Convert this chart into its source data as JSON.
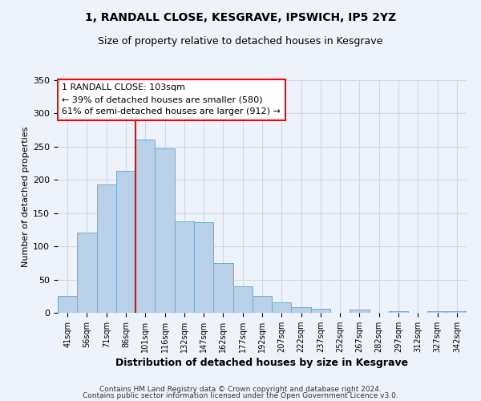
{
  "title": "1, RANDALL CLOSE, KESGRAVE, IPSWICH, IP5 2YZ",
  "subtitle": "Size of property relative to detached houses in Kesgrave",
  "xlabel": "Distribution of detached houses by size in Kesgrave",
  "ylabel": "Number of detached properties",
  "categories": [
    "41sqm",
    "56sqm",
    "71sqm",
    "86sqm",
    "101sqm",
    "116sqm",
    "132sqm",
    "147sqm",
    "162sqm",
    "177sqm",
    "192sqm",
    "207sqm",
    "222sqm",
    "237sqm",
    "252sqm",
    "267sqm",
    "282sqm",
    "297sqm",
    "312sqm",
    "327sqm",
    "342sqm"
  ],
  "values": [
    25,
    121,
    193,
    214,
    261,
    247,
    137,
    136,
    75,
    40,
    25,
    16,
    8,
    6,
    0,
    5,
    0,
    3,
    0,
    3,
    2
  ],
  "bar_color": "#b8d0e8",
  "bar_edge_color": "#6baed6",
  "vline_color": "red",
  "vline_position": 3.5,
  "annotation_text": "1 RANDALL CLOSE: 103sqm\n← 39% of detached houses are smaller (580)\n61% of semi-detached houses are larger (912) →",
  "annotation_box_color": "white",
  "annotation_box_edge_color": "red",
  "ylim": [
    0,
    350
  ],
  "yticks": [
    0,
    50,
    100,
    150,
    200,
    250,
    300,
    350
  ],
  "footer1": "Contains HM Land Registry data © Crown copyright and database right 2024.",
  "footer2": "Contains public sector information licensed under the Open Government Licence v3.0.",
  "background_color": "#eef2fb",
  "grid_color": "#d0d8e8",
  "title_fontsize": 10,
  "subtitle_fontsize": 9
}
